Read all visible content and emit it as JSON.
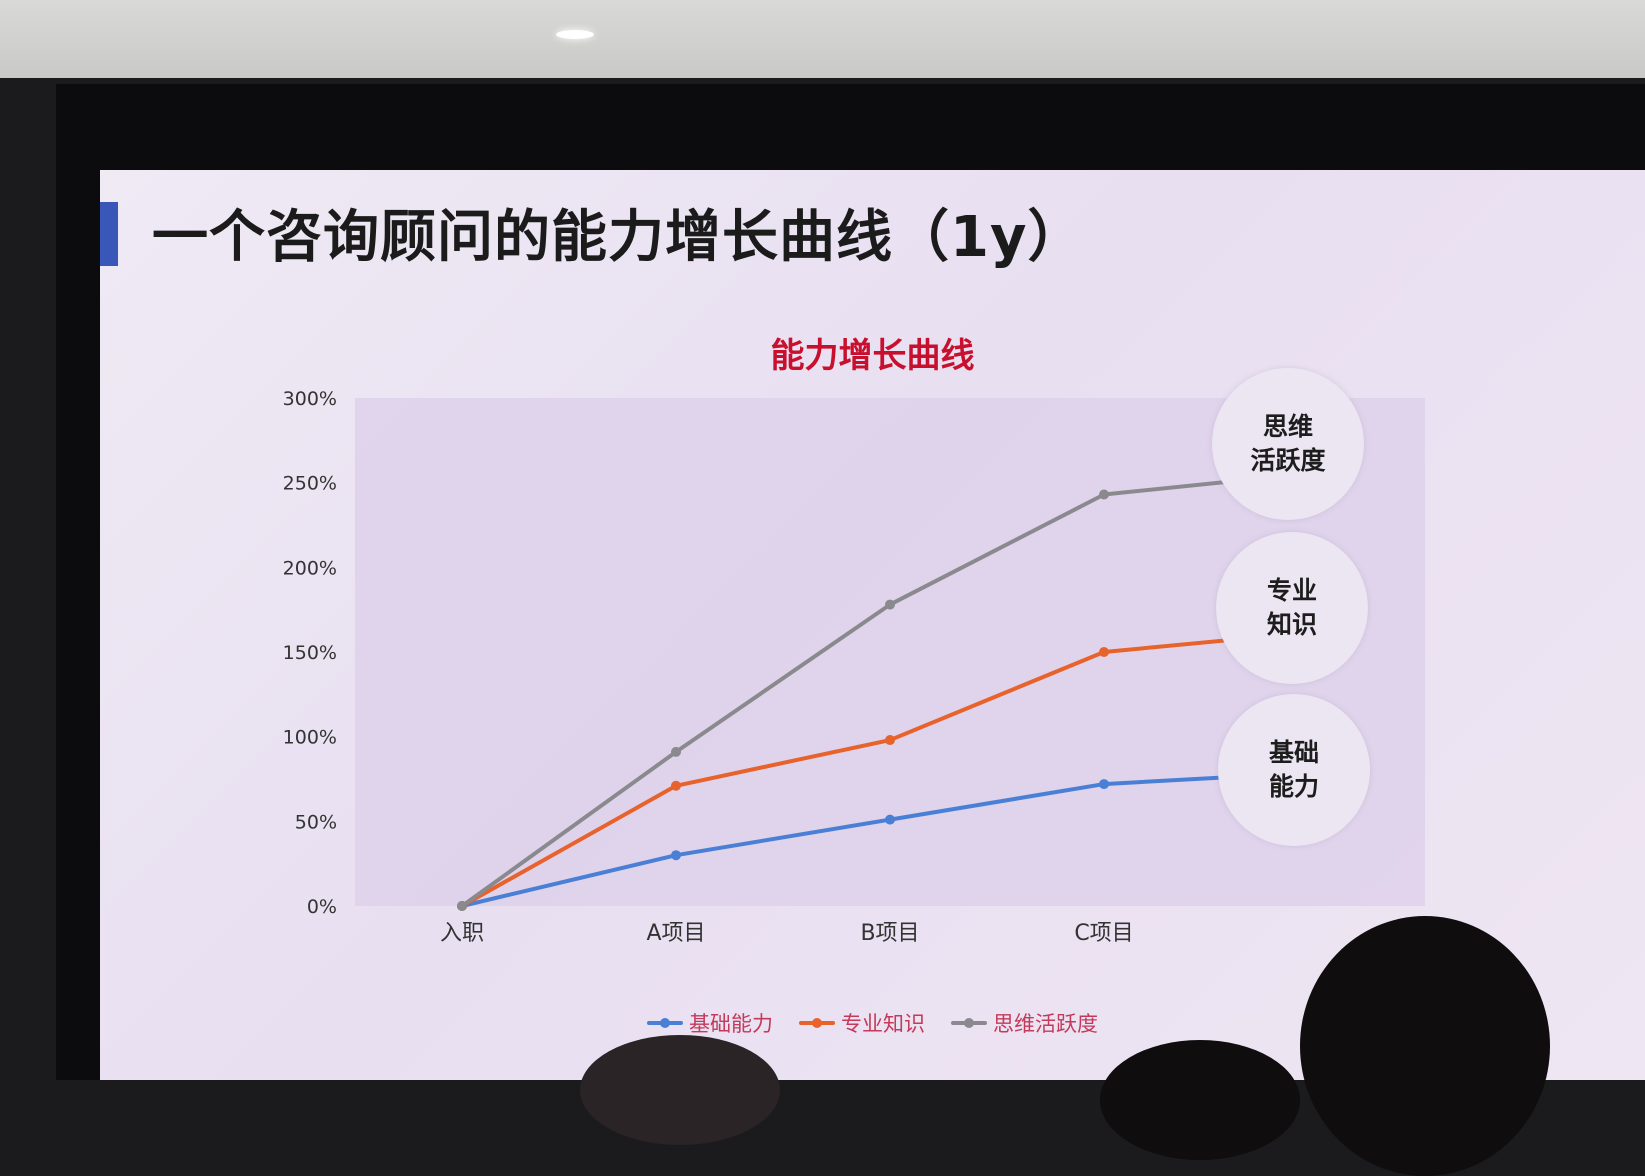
{
  "slide": {
    "title": "一个咨询顾问的能力增长曲线（1y）",
    "accent": "#3857b8"
  },
  "chart_data": {
    "type": "line",
    "title": "能力增长曲线",
    "title_color": "#c8102e",
    "categories": [
      "入职",
      "A项目",
      "B项目",
      "C项目",
      ""
    ],
    "ylim": [
      0,
      3
    ],
    "yticks": [
      0,
      0.5,
      1,
      1.5,
      2,
      2.5,
      3
    ],
    "ytick_labels": [
      "0%",
      "50%",
      "100%",
      "150%",
      "200%",
      "250%",
      "300%"
    ],
    "grid": false,
    "legend": "bottom",
    "series": [
      {
        "name": "基础能力",
        "color": "#4a7fd6",
        "values": [
          0,
          0.3,
          0.51,
          0.72,
          0.79
        ]
      },
      {
        "name": "专业知识",
        "color": "#e8622b",
        "values": [
          0,
          0.71,
          0.98,
          1.5,
          1.62
        ]
      },
      {
        "name": "思维活跃度",
        "color": "#8a8a8e",
        "values": [
          0,
          0.91,
          1.78,
          2.43,
          2.56
        ]
      }
    ],
    "annotations": [
      {
        "label": "思维\n活跃度",
        "series": "思维活跃度"
      },
      {
        "label": "专业\n知识",
        "series": "专业知识"
      },
      {
        "label": "基础\n能力",
        "series": "基础能力"
      }
    ]
  }
}
